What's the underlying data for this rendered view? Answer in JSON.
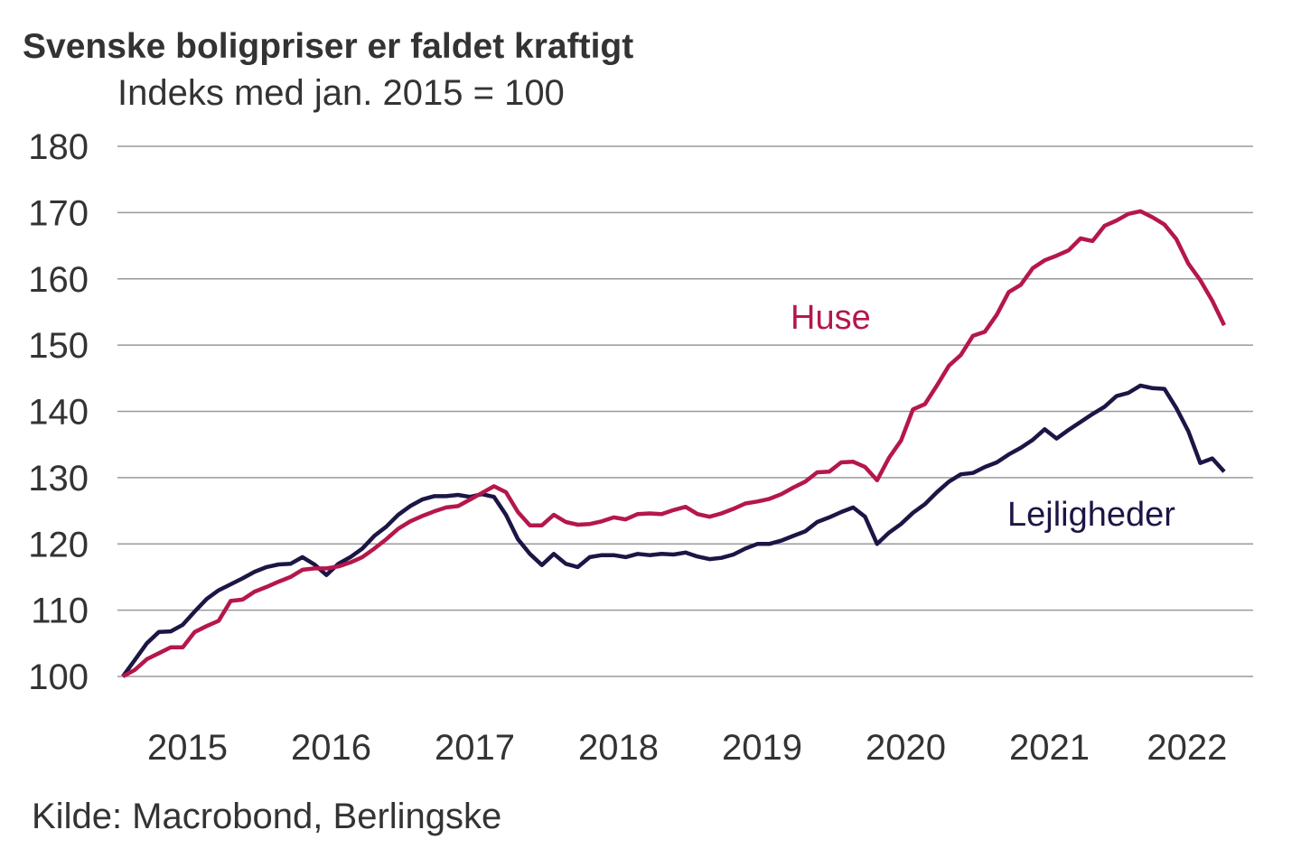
{
  "chart_data": {
    "type": "line",
    "title": "Svenske boligpriser er faldet kraftigt",
    "subtitle": "Indeks med jan. 2015 = 100",
    "source": "Kilde: Macrobond, Berlingske",
    "xlabel": "",
    "ylabel": "",
    "x_start": "2015-01",
    "x_frequency": "monthly",
    "ylim": [
      100,
      180
    ],
    "yticks": [
      "100",
      "110",
      "120",
      "130",
      "140",
      "150",
      "160",
      "170",
      "180"
    ],
    "xticks": [
      "2015",
      "2016",
      "2017",
      "2018",
      "2019",
      "2020",
      "2021",
      "2022"
    ],
    "grid": true,
    "legend": "inline labels",
    "series": [
      {
        "name": "Huse",
        "color": "#b5174a",
        "values": [
          100,
          101,
          102.6,
          103.5,
          104.4,
          104.4,
          106.7,
          107.6,
          108.4,
          111.4,
          111.6,
          112.8,
          113.5,
          114.3,
          115,
          116.1,
          116.3,
          116.3,
          116.6,
          117.2,
          118,
          119.3,
          120.7,
          122.3,
          123.4,
          124.2,
          124.9,
          125.5,
          125.7,
          126.7,
          127.7,
          128.7,
          127.8,
          124.8,
          122.8,
          122.8,
          124.4,
          123.3,
          122.9,
          123,
          123.4,
          124,
          123.7,
          124.5,
          124.6,
          124.5,
          125.1,
          125.6,
          124.5,
          124.1,
          124.6,
          125.3,
          126.1,
          126.4,
          126.8,
          127.5,
          128.5,
          129.4,
          130.8,
          130.9,
          132.3,
          132.4,
          131.6,
          129.6,
          133,
          135.6,
          140.3,
          141.1,
          143.9,
          146.9,
          148.5,
          151.4,
          152,
          154.6,
          158,
          159.1,
          161.6,
          162.8,
          163.5,
          164.3,
          166.1,
          165.7,
          168,
          168.8,
          169.8,
          170.2,
          169.3,
          168.2,
          166,
          162.3,
          159.8,
          156.7,
          153
        ]
      },
      {
        "name": "Lejligheder",
        "color": "#1c1646",
        "values": [
          100,
          102.5,
          105,
          106.7,
          106.8,
          107.8,
          109.8,
          111.7,
          113,
          113.9,
          114.8,
          115.8,
          116.5,
          116.9,
          117,
          118,
          116.9,
          115.3,
          117,
          118,
          119.3,
          121.2,
          122.6,
          124.4,
          125.7,
          126.7,
          127.2,
          127.2,
          127.4,
          127.1,
          127.5,
          127.1,
          124.4,
          120.7,
          118.5,
          116.8,
          118.5,
          117,
          116.5,
          118,
          118.3,
          118.3,
          118,
          118.5,
          118.3,
          118.5,
          118.4,
          118.7,
          118.1,
          117.7,
          117.9,
          118.4,
          119.3,
          120,
          120,
          120.5,
          121.2,
          121.9,
          123.3,
          124,
          124.8,
          125.5,
          124.1,
          120,
          121.7,
          123,
          124.7,
          126,
          127.8,
          129.4,
          130.5,
          130.7,
          131.6,
          132.3,
          133.5,
          134.5,
          135.7,
          137.3,
          135.9,
          137.2,
          138.4,
          139.6,
          140.7,
          142.3,
          142.8,
          143.9,
          143.5,
          143.4,
          140.5,
          137,
          132.2,
          132.9,
          130.9
        ]
      }
    ]
  }
}
